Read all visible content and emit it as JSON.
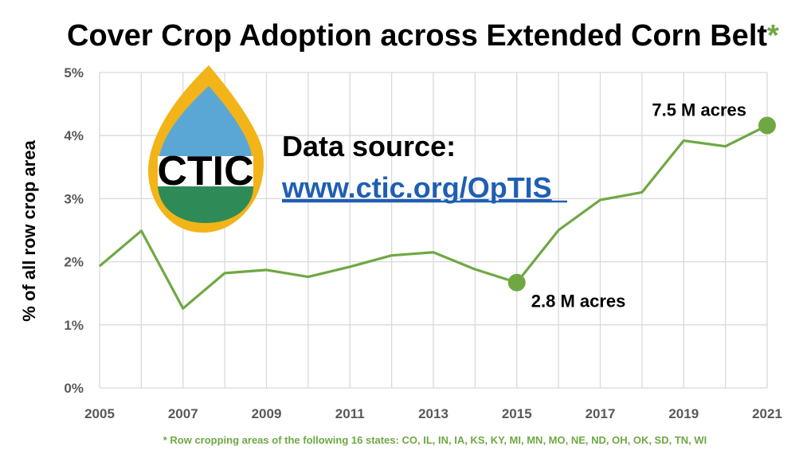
{
  "title": "Cover Crop Adoption across Extended Corn Belt",
  "title_star": "*",
  "source": {
    "label": "Data source:",
    "link": "www.ctic.org/OpTIS"
  },
  "logo": {
    "text": "CTIC"
  },
  "footnote": "* Row cropping areas of the following 16 states: CO, IL, IN, IA, KS, KY, MI, MN, MO, NE, ND, OH, OK, SD, TN, WI",
  "colors": {
    "line": "#6fa843",
    "grid": "#d9d9d9",
    "tick": "#595959",
    "link": "#1f5fb3",
    "logo_outer": "#f2b418",
    "logo_sky": "#5aa7d6",
    "logo_ground": "#2e8b57"
  },
  "chart_data": {
    "type": "line",
    "title": "Cover Crop Adoption across Extended Corn Belt",
    "xlabel": "",
    "ylabel": "% of all row crop area",
    "x": [
      2005,
      2006,
      2007,
      2008,
      2009,
      2010,
      2011,
      2012,
      2013,
      2014,
      2015,
      2016,
      2017,
      2018,
      2019,
      2020,
      2021
    ],
    "x_tick_labels": [
      "2005",
      "2007",
      "2009",
      "2011",
      "2013",
      "2015",
      "2017",
      "2019",
      "2021"
    ],
    "y_tick_labels": [
      "0%",
      "1%",
      "2%",
      "3%",
      "4%",
      "5%"
    ],
    "xlim": [
      2005,
      2021
    ],
    "ylim": [
      0,
      5
    ],
    "grid": true,
    "series": [
      {
        "values": [
          1.93,
          2.49,
          1.26,
          1.82,
          1.87,
          1.76,
          1.92,
          2.1,
          2.15,
          1.88,
          1.67,
          2.5,
          2.98,
          3.1,
          3.92,
          3.83,
          4.16
        ]
      }
    ],
    "highlights": [
      {
        "x": 2015,
        "y": 1.67,
        "label": "2.8 M acres"
      },
      {
        "x": 2021,
        "y": 4.16,
        "label": "7.5 M acres"
      }
    ]
  }
}
